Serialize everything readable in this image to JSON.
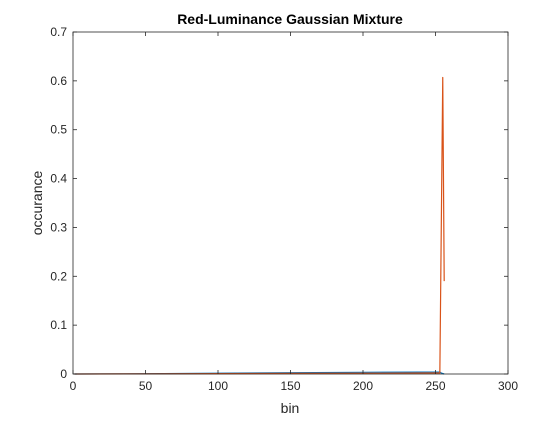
{
  "chart_data": {
    "type": "line",
    "title": "Red-Luminance Gaussian Mixture",
    "xlabel": "bin",
    "ylabel": "occurance",
    "xlim": [
      0,
      300
    ],
    "ylim": [
      0,
      0.7
    ],
    "xticks": [
      0,
      50,
      100,
      150,
      200,
      250,
      300
    ],
    "yticks": [
      0,
      0.1,
      0.2,
      0.3,
      0.4,
      0.5,
      0.6,
      0.7
    ],
    "xtick_labels": [
      "0",
      "50",
      "100",
      "150",
      "200",
      "250",
      "300"
    ],
    "ytick_labels": [
      "0",
      "0.1",
      "0.2",
      "0.3",
      "0.4",
      "0.5",
      "0.6",
      "0.7"
    ],
    "grid": false,
    "box": true,
    "series": [
      {
        "color": "#0072BD",
        "x": [
          1,
          50,
          100,
          150,
          200,
          240,
          253,
          254,
          256
        ],
        "y": [
          0.0,
          0.0005,
          0.0015,
          0.0025,
          0.0035,
          0.004,
          0.004,
          0.002,
          0.0
        ]
      },
      {
        "color": "#D95319",
        "x": [
          1,
          50,
          100,
          150,
          200,
          250,
          253,
          255,
          256
        ],
        "y": [
          0.0,
          0.0003,
          0.0008,
          0.0012,
          0.0016,
          0.002,
          0.002,
          0.607,
          0.19
        ]
      }
    ]
  }
}
